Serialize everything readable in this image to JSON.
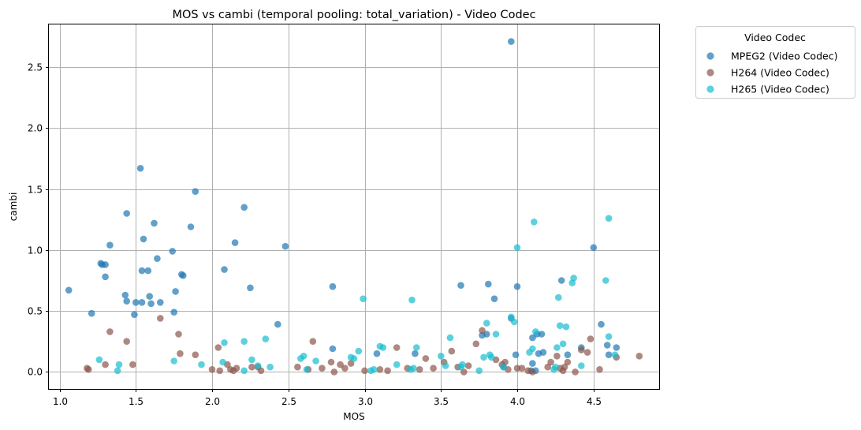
{
  "chart_data": {
    "type": "scatter",
    "title": "MOS vs cambi (temporal pooling: total_variation) - Video Codec",
    "xlabel": "MOS",
    "ylabel": "cambi",
    "xlim": [
      0.93,
      4.93
    ],
    "ylim": [
      -0.14,
      2.85
    ],
    "xticks": [
      1.0,
      1.5,
      2.0,
      2.5,
      3.0,
      3.5,
      4.0,
      4.5
    ],
    "xtick_labels": [
      "1.0",
      "1.5",
      "2.0",
      "2.5",
      "3.0",
      "3.5",
      "4.0",
      "4.5"
    ],
    "yticks": [
      0.0,
      0.5,
      1.0,
      1.5,
      2.0,
      2.5
    ],
    "ytick_labels": [
      "0.0",
      "0.5",
      "1.0",
      "1.5",
      "2.0",
      "2.5"
    ],
    "grid": true,
    "legend": {
      "title": "Video Codec",
      "placement": "outside-top-right"
    },
    "series": [
      {
        "name": "MPEG2 (Video Codec)",
        "color": "#1f77b4",
        "points": [
          [
            1.06,
            0.67
          ],
          [
            1.21,
            0.48
          ],
          [
            1.27,
            0.89
          ],
          [
            1.28,
            0.88
          ],
          [
            1.3,
            0.88
          ],
          [
            1.3,
            0.78
          ],
          [
            1.33,
            1.04
          ],
          [
            1.43,
            0.63
          ],
          [
            1.44,
            0.58
          ],
          [
            1.44,
            1.3
          ],
          [
            1.49,
            0.47
          ],
          [
            1.5,
            0.57
          ],
          [
            1.53,
            1.67
          ],
          [
            1.54,
            0.83
          ],
          [
            1.54,
            0.57
          ],
          [
            1.55,
            1.09
          ],
          [
            1.58,
            0.83
          ],
          [
            1.59,
            0.62
          ],
          [
            1.6,
            0.56
          ],
          [
            1.62,
            1.22
          ],
          [
            1.64,
            0.93
          ],
          [
            1.66,
            0.57
          ],
          [
            1.74,
            0.99
          ],
          [
            1.75,
            0.49
          ],
          [
            1.76,
            0.66
          ],
          [
            1.8,
            0.8
          ],
          [
            1.81,
            0.79
          ],
          [
            1.86,
            1.19
          ],
          [
            1.89,
            1.48
          ],
          [
            2.08,
            0.84
          ],
          [
            2.15,
            1.06
          ],
          [
            2.21,
            1.35
          ],
          [
            2.25,
            0.69
          ],
          [
            2.43,
            0.39
          ],
          [
            2.48,
            1.03
          ],
          [
            2.79,
            0.7
          ],
          [
            2.79,
            0.19
          ],
          [
            3.08,
            0.15
          ],
          [
            3.33,
            0.15
          ],
          [
            3.63,
            0.71
          ],
          [
            3.77,
            0.3
          ],
          [
            3.8,
            0.31
          ],
          [
            3.81,
            0.72
          ],
          [
            3.85,
            0.6
          ],
          [
            3.91,
            0.04
          ],
          [
            3.96,
            2.71
          ],
          [
            3.96,
            0.44
          ],
          [
            3.99,
            0.14
          ],
          [
            4.0,
            0.7
          ],
          [
            4.09,
            0.01
          ],
          [
            4.1,
            0.07
          ],
          [
            4.1,
            0.28
          ],
          [
            4.12,
            0.01
          ],
          [
            4.13,
            0.31
          ],
          [
            4.14,
            0.15
          ],
          [
            4.16,
            0.31
          ],
          [
            4.17,
            0.16
          ],
          [
            4.29,
            0.75
          ],
          [
            4.33,
            0.14
          ],
          [
            4.42,
            0.2
          ],
          [
            4.5,
            1.02
          ],
          [
            4.55,
            0.39
          ],
          [
            4.59,
            0.22
          ],
          [
            4.6,
            0.14
          ],
          [
            4.65,
            0.2
          ]
        ]
      },
      {
        "name": "H264 (Video Codec)",
        "color": "#8c564b",
        "points": [
          [
            1.18,
            0.03
          ],
          [
            1.19,
            0.02
          ],
          [
            1.3,
            0.06
          ],
          [
            1.33,
            0.33
          ],
          [
            1.44,
            0.25
          ],
          [
            1.48,
            0.06
          ],
          [
            1.66,
            0.44
          ],
          [
            1.78,
            0.31
          ],
          [
            1.79,
            0.15
          ],
          [
            1.89,
            0.14
          ],
          [
            2.0,
            0.02
          ],
          [
            2.04,
            0.2
          ],
          [
            2.05,
            0.01
          ],
          [
            2.1,
            0.06
          ],
          [
            2.12,
            0.02
          ],
          [
            2.14,
            0.01
          ],
          [
            2.16,
            0.03
          ],
          [
            2.26,
            0.04
          ],
          [
            2.3,
            0.04
          ],
          [
            2.32,
            0.01
          ],
          [
            2.56,
            0.04
          ],
          [
            2.63,
            0.02
          ],
          [
            2.66,
            0.25
          ],
          [
            2.72,
            0.03
          ],
          [
            2.78,
            0.08
          ],
          [
            2.8,
            0.0
          ],
          [
            2.84,
            0.06
          ],
          [
            2.87,
            0.03
          ],
          [
            2.91,
            0.07
          ],
          [
            3.0,
            0.01
          ],
          [
            3.1,
            0.02
          ],
          [
            3.15,
            0.01
          ],
          [
            3.21,
            0.2
          ],
          [
            3.28,
            0.03
          ],
          [
            3.36,
            0.02
          ],
          [
            3.4,
            0.11
          ],
          [
            3.45,
            0.03
          ],
          [
            3.52,
            0.08
          ],
          [
            3.57,
            0.17
          ],
          [
            3.61,
            0.04
          ],
          [
            3.65,
            0.0
          ],
          [
            3.68,
            0.05
          ],
          [
            3.73,
            0.23
          ],
          [
            3.77,
            0.34
          ],
          [
            3.86,
            0.1
          ],
          [
            3.9,
            0.06
          ],
          [
            3.92,
            0.08
          ],
          [
            3.94,
            0.02
          ],
          [
            4.0,
            0.03
          ],
          [
            4.03,
            0.03
          ],
          [
            4.07,
            0.01
          ],
          [
            4.1,
            0.0
          ],
          [
            4.2,
            0.04
          ],
          [
            4.22,
            0.08
          ],
          [
            4.26,
            0.13
          ],
          [
            4.28,
            0.03
          ],
          [
            4.3,
            0.01
          ],
          [
            4.31,
            0.04
          ],
          [
            4.33,
            0.08
          ],
          [
            4.38,
            0.0
          ],
          [
            4.42,
            0.18
          ],
          [
            4.46,
            0.16
          ],
          [
            4.48,
            0.27
          ],
          [
            4.54,
            0.02
          ],
          [
            4.65,
            0.12
          ],
          [
            4.8,
            0.13
          ]
        ]
      },
      {
        "name": "H265 (Video Codec)",
        "color": "#17becf",
        "points": [
          [
            1.26,
            0.1
          ],
          [
            1.38,
            0.01
          ],
          [
            1.39,
            0.06
          ],
          [
            1.75,
            0.09
          ],
          [
            1.93,
            0.06
          ],
          [
            2.07,
            0.08
          ],
          [
            2.08,
            0.24
          ],
          [
            2.21,
            0.25
          ],
          [
            2.21,
            0.01
          ],
          [
            2.26,
            0.1
          ],
          [
            2.3,
            0.05
          ],
          [
            2.35,
            0.27
          ],
          [
            2.38,
            0.04
          ],
          [
            2.58,
            0.11
          ],
          [
            2.6,
            0.13
          ],
          [
            2.62,
            0.02
          ],
          [
            2.68,
            0.09
          ],
          [
            2.91,
            0.12
          ],
          [
            2.93,
            0.11
          ],
          [
            2.96,
            0.17
          ],
          [
            2.99,
            0.6
          ],
          [
            3.04,
            0.01
          ],
          [
            3.06,
            0.02
          ],
          [
            3.1,
            0.21
          ],
          [
            3.12,
            0.2
          ],
          [
            3.21,
            0.06
          ],
          [
            3.3,
            0.02
          ],
          [
            3.31,
            0.59
          ],
          [
            3.32,
            0.03
          ],
          [
            3.34,
            0.2
          ],
          [
            3.5,
            0.13
          ],
          [
            3.53,
            0.05
          ],
          [
            3.56,
            0.28
          ],
          [
            3.63,
            0.04
          ],
          [
            3.64,
            0.06
          ],
          [
            3.75,
            0.01
          ],
          [
            3.78,
            0.12
          ],
          [
            3.8,
            0.4
          ],
          [
            3.82,
            0.14
          ],
          [
            3.83,
            0.12
          ],
          [
            3.86,
            0.31
          ],
          [
            3.91,
            0.04
          ],
          [
            3.96,
            0.45
          ],
          [
            3.98,
            0.41
          ],
          [
            4.0,
            1.02
          ],
          [
            4.08,
            0.16
          ],
          [
            4.1,
            0.19
          ],
          [
            4.11,
            1.23
          ],
          [
            4.12,
            0.33
          ],
          [
            4.24,
            0.02
          ],
          [
            4.25,
            0.04
          ],
          [
            4.26,
            0.2
          ],
          [
            4.27,
            0.61
          ],
          [
            4.28,
            0.38
          ],
          [
            4.3,
            0.23
          ],
          [
            4.32,
            0.37
          ],
          [
            4.36,
            0.73
          ],
          [
            4.37,
            0.77
          ],
          [
            4.42,
            0.05
          ],
          [
            4.58,
            0.75
          ],
          [
            4.6,
            1.26
          ],
          [
            4.6,
            0.29
          ],
          [
            4.64,
            0.14
          ]
        ]
      }
    ]
  }
}
